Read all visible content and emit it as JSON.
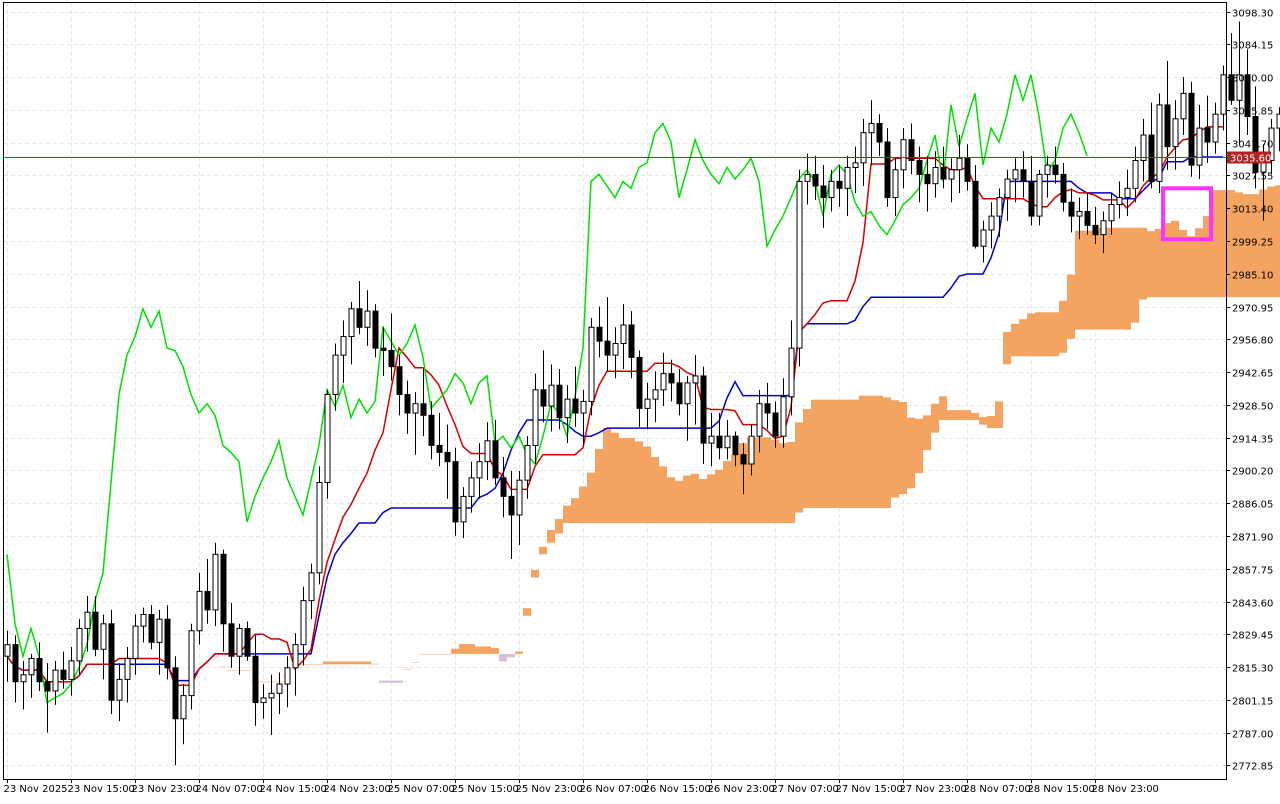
{
  "chart_data": {
    "type": "candlestick",
    "y_ticks": [
      "3098.30",
      "3084.15",
      "3070.00",
      "3055.85",
      "3041.70",
      "3027.55",
      "3013.40",
      "2999.25",
      "2985.10",
      "2970.95",
      "2956.80",
      "2942.65",
      "2928.50",
      "2914.35",
      "2900.20",
      "2886.05",
      "2871.90",
      "2857.75",
      "2843.60",
      "2829.45",
      "2815.30",
      "2801.15",
      "2787.00",
      "2772.85"
    ],
    "x_ticks": [
      "23 Nov 2025",
      "23 Nov 15:00",
      "23 Nov 23:00",
      "24 Nov 07:00",
      "24 Nov 15:00",
      "24 Nov 23:00",
      "25 Nov 07:00",
      "25 Nov 15:00",
      "25 Nov 23:00",
      "26 Nov 07:00",
      "26 Nov 15:00",
      "26 Nov 23:00",
      "27 Nov 07:00",
      "27 Nov 15:00",
      "27 Nov 23:00",
      "28 Nov 07:00",
      "28 Nov 15:00",
      "28 Nov 23:00"
    ],
    "ylim": [
      2767,
      3102
    ],
    "current_price": "3035.60",
    "grid": true,
    "colors": {
      "background": "#ffffff",
      "grid": "#e6e6e6",
      "candle_fill": "#000000",
      "tenkan": "#d40000",
      "kijun": "#0000c8",
      "chikou": "#00e000",
      "cloud_bull": "#f4a460",
      "cloud_bear": "#d8bfd8",
      "price_line": "#b22222",
      "highlight_box": "#ff33ff",
      "signal_arrow": "#ff3333"
    },
    "candles_ohlc": [
      [
        2820,
        2831,
        2809,
        2825
      ],
      [
        2825,
        2829,
        2800,
        2809
      ],
      [
        2809,
        2818,
        2797,
        2812
      ],
      [
        2812,
        2821,
        2802,
        2819
      ],
      [
        2819,
        2826,
        2805,
        2809
      ],
      [
        2809,
        2817,
        2787,
        2805
      ],
      [
        2805,
        2818,
        2799,
        2814
      ],
      [
        2814,
        2822,
        2806,
        2810
      ],
      [
        2810,
        2824,
        2803,
        2818
      ],
      [
        2818,
        2836,
        2812,
        2832
      ],
      [
        2832,
        2846,
        2822,
        2839
      ],
      [
        2839,
        2846,
        2820,
        2823
      ],
      [
        2823,
        2838,
        2810,
        2834
      ],
      [
        2834,
        2840,
        2795,
        2801
      ],
      [
        2801,
        2817,
        2792,
        2810
      ],
      [
        2810,
        2824,
        2800,
        2819
      ],
      [
        2819,
        2838,
        2812,
        2833
      ],
      [
        2833,
        2841,
        2826,
        2838
      ],
      [
        2838,
        2842,
        2823,
        2826
      ],
      [
        2826,
        2840,
        2812,
        2836
      ],
      [
        2836,
        2842,
        2810,
        2815
      ],
      [
        2815,
        2820,
        2773,
        2793
      ],
      [
        2793,
        2808,
        2782,
        2803
      ],
      [
        2803,
        2834,
        2797,
        2831
      ],
      [
        2831,
        2856,
        2825,
        2848
      ],
      [
        2848,
        2862,
        2834,
        2840
      ],
      [
        2840,
        2869,
        2833,
        2864
      ],
      [
        2864,
        2866,
        2822,
        2834
      ],
      [
        2834,
        2843,
        2815,
        2820
      ],
      [
        2820,
        2834,
        2812,
        2832
      ],
      [
        2832,
        2835,
        2818,
        2820
      ],
      [
        2820,
        2829,
        2790,
        2800
      ],
      [
        2800,
        2808,
        2793,
        2802
      ],
      [
        2802,
        2812,
        2786,
        2804
      ],
      [
        2804,
        2813,
        2795,
        2808
      ],
      [
        2808,
        2820,
        2798,
        2815
      ],
      [
        2815,
        2830,
        2803,
        2825
      ],
      [
        2825,
        2850,
        2816,
        2844
      ],
      [
        2844,
        2860,
        2836,
        2856
      ],
      [
        2856,
        2902,
        2851,
        2895
      ],
      [
        2895,
        2935,
        2888,
        2933
      ],
      [
        2933,
        2955,
        2926,
        2950
      ],
      [
        2950,
        2965,
        2938,
        2958
      ],
      [
        2958,
        2973,
        2946,
        2970
      ],
      [
        2970,
        2982,
        2959,
        2962
      ],
      [
        2962,
        2978,
        2954,
        2969
      ],
      [
        2969,
        2972,
        2949,
        2953
      ],
      [
        2953,
        2962,
        2941,
        2952
      ],
      [
        2952,
        2968,
        2939,
        2945
      ],
      [
        2945,
        2950,
        2924,
        2933
      ],
      [
        2933,
        2939,
        2916,
        2925
      ],
      [
        2925,
        2934,
        2907,
        2929
      ],
      [
        2929,
        2944,
        2915,
        2924
      ],
      [
        2924,
        2930,
        2905,
        2911
      ],
      [
        2911,
        2925,
        2902,
        2908
      ],
      [
        2908,
        2920,
        2888,
        2904
      ],
      [
        2904,
        2910,
        2872,
        2878
      ],
      [
        2878,
        2893,
        2871,
        2889
      ],
      [
        2889,
        2904,
        2882,
        2897
      ],
      [
        2897,
        2912,
        2888,
        2904
      ],
      [
        2904,
        2921,
        2896,
        2913
      ],
      [
        2913,
        2922,
        2894,
        2897
      ],
      [
        2897,
        2906,
        2880,
        2889
      ],
      [
        2889,
        2900,
        2862,
        2881
      ],
      [
        2881,
        2900,
        2868,
        2896
      ],
      [
        2896,
        2915,
        2888,
        2911
      ],
      [
        2911,
        2942,
        2903,
        2935
      ],
      [
        2935,
        2952,
        2921,
        2928
      ],
      [
        2928,
        2946,
        2917,
        2937
      ],
      [
        2937,
        2944,
        2918,
        2923
      ],
      [
        2923,
        2937,
        2912,
        2931
      ],
      [
        2931,
        2945,
        2919,
        2925
      ],
      [
        2925,
        2935,
        2911,
        2930
      ],
      [
        2930,
        2966,
        2924,
        2962
      ],
      [
        2962,
        2971,
        2949,
        2956
      ],
      [
        2956,
        2975,
        2943,
        2950
      ],
      [
        2950,
        2962,
        2940,
        2955
      ],
      [
        2955,
        2972,
        2944,
        2963
      ],
      [
        2963,
        2969,
        2940,
        2949
      ],
      [
        2949,
        2952,
        2919,
        2927
      ],
      [
        2927,
        2938,
        2918,
        2931
      ],
      [
        2931,
        2943,
        2921,
        2935
      ],
      [
        2935,
        2951,
        2928,
        2942
      ],
      [
        2942,
        2948,
        2930,
        2938
      ],
      [
        2938,
        2944,
        2924,
        2929
      ],
      [
        2929,
        2941,
        2913,
        2938
      ],
      [
        2938,
        2950,
        2920,
        2941
      ],
      [
        2941,
        2945,
        2903,
        2912
      ],
      [
        2912,
        2925,
        2902,
        2915
      ],
      [
        2915,
        2925,
        2905,
        2910
      ],
      [
        2910,
        2922,
        2905,
        2915
      ],
      [
        2915,
        2917,
        2902,
        2907
      ],
      [
        2907,
        2912,
        2890,
        2903
      ],
      [
        2903,
        2920,
        2898,
        2915
      ],
      [
        2915,
        2935,
        2908,
        2929
      ],
      [
        2929,
        2938,
        2918,
        2925
      ],
      [
        2925,
        2930,
        2910,
        2915
      ],
      [
        2915,
        2940,
        2910,
        2932
      ],
      [
        2932,
        2965,
        2924,
        2953
      ],
      [
        2953,
        3030,
        2945,
        3025
      ],
      [
        3025,
        3037,
        3015,
        3028
      ],
      [
        3028,
        3036,
        3017,
        3023
      ],
      [
        3023,
        3032,
        3005,
        3018
      ],
      [
        3018,
        3030,
        3012,
        3025
      ],
      [
        3025,
        3032,
        3014,
        3022
      ],
      [
        3022,
        3036,
        3010,
        3031
      ],
      [
        3031,
        3040,
        3020,
        3033
      ],
      [
        3033,
        3052,
        3023,
        3046
      ],
      [
        3046,
        3060,
        3032,
        3050
      ],
      [
        3050,
        3054,
        3036,
        3042
      ],
      [
        3042,
        3048,
        3014,
        3018
      ],
      [
        3018,
        3035,
        3010,
        3030
      ],
      [
        3030,
        3048,
        3022,
        3043
      ],
      [
        3043,
        3050,
        3028,
        3034
      ],
      [
        3034,
        3040,
        3016,
        3028
      ],
      [
        3028,
        3036,
        3012,
        3024
      ],
      [
        3024,
        3038,
        3018,
        3031
      ],
      [
        3031,
        3040,
        3022,
        3026
      ],
      [
        3026,
        3035,
        3016,
        3030
      ],
      [
        3030,
        3045,
        3020,
        3035
      ],
      [
        3035,
        3041,
        3021,
        3025
      ],
      [
        3025,
        3032,
        2996,
        2997
      ],
      [
        2997,
        3008,
        2990,
        3004
      ],
      [
        3004,
        3016,
        2996,
        3010
      ],
      [
        3010,
        3022,
        3001,
        3018
      ],
      [
        3018,
        3030,
        3008,
        3026
      ],
      [
        3026,
        3035,
        3016,
        3030
      ],
      [
        3030,
        3038,
        3018,
        3025
      ],
      [
        3025,
        3036,
        3006,
        3010
      ],
      [
        3010,
        3030,
        3006,
        3028
      ],
      [
        3028,
        3036,
        3018,
        3032
      ],
      [
        3032,
        3040,
        3024,
        3028
      ],
      [
        3028,
        3033,
        3012,
        3016
      ],
      [
        3016,
        3022,
        3003,
        3010
      ],
      [
        3010,
        3018,
        3000,
        3012
      ],
      [
        3012,
        3020,
        3002,
        3006
      ],
      [
        3006,
        3014,
        2998,
        3002
      ],
      [
        3002,
        3012,
        2994,
        3008
      ],
      [
        3008,
        3020,
        3002,
        3015
      ],
      [
        3015,
        3025,
        3009,
        3018
      ],
      [
        3018,
        3030,
        3010,
        3022
      ],
      [
        3022,
        3040,
        3016,
        3034
      ],
      [
        3034,
        3052,
        3025,
        3045
      ],
      [
        3045,
        3059,
        3022,
        3025
      ],
      [
        3025,
        3063,
        3020,
        3058
      ],
      [
        3058,
        3077,
        3030,
        3040
      ],
      [
        3040,
        3060,
        3030,
        3052
      ],
      [
        3052,
        3070,
        3045,
        3063
      ],
      [
        3063,
        3068,
        3027,
        3032
      ],
      [
        3032,
        3058,
        3026,
        3048
      ],
      [
        3048,
        3062,
        3033,
        3042
      ],
      [
        3042,
        3059,
        3037,
        3054
      ],
      [
        3054,
        3075,
        3047,
        3071
      ],
      [
        3071,
        3089,
        3058,
        3060
      ],
      [
        3060,
        3094,
        3041,
        3071
      ],
      [
        3071,
        3082,
        3045,
        3053
      ],
      [
        3053,
        3066,
        3022,
        3029
      ],
      [
        3029,
        3041,
        3008,
        3034
      ],
      [
        3034,
        3052,
        3028,
        3048
      ],
      [
        3048,
        3057,
        3038,
        3054
      ],
      [
        3054,
        3060,
        3042,
        3046
      ],
      [
        3046,
        3059,
        3032,
        3036
      ]
    ]
  }
}
